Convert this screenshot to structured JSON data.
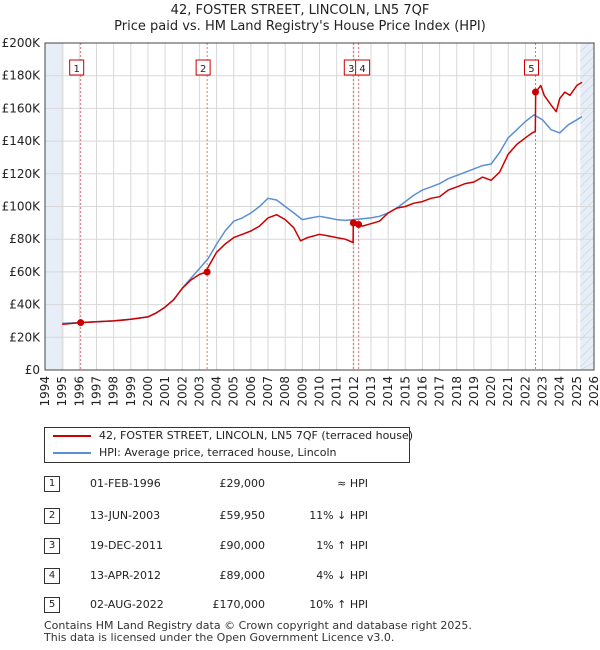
{
  "header": {
    "title": "42, FOSTER STREET, LINCOLN, LN5 7QF",
    "subtitle": "Price paid vs. HM Land Registry's House Price Index (HPI)"
  },
  "colors": {
    "property": "#cc0000",
    "hpi": "#5b8fd4",
    "shade": "#e8eef8",
    "grid": "#d8d8d8"
  },
  "chart_data": {
    "type": "line",
    "xlim": [
      1994,
      2026
    ],
    "ylim": [
      0,
      200000
    ],
    "x_ticks": [
      1994,
      1995,
      1996,
      1997,
      1998,
      1999,
      2000,
      2001,
      2002,
      2003,
      2004,
      2005,
      2006,
      2007,
      2008,
      2009,
      2010,
      2011,
      2012,
      2013,
      2014,
      2015,
      2016,
      2017,
      2018,
      2019,
      2020,
      2021,
      2022,
      2023,
      2024,
      2025,
      2026
    ],
    "y_ticks": [
      {
        "value": 0,
        "label": "£0"
      },
      {
        "value": 20000,
        "label": "£20K"
      },
      {
        "value": 40000,
        "label": "£40K"
      },
      {
        "value": 60000,
        "label": "£60K"
      },
      {
        "value": 80000,
        "label": "£80K"
      },
      {
        "value": 100000,
        "label": "£100K"
      },
      {
        "value": 120000,
        "label": "£120K"
      },
      {
        "value": 140000,
        "label": "£140K"
      },
      {
        "value": 160000,
        "label": "£160K"
      },
      {
        "value": 180000,
        "label": "£180K"
      },
      {
        "value": 200000,
        "label": "£200K"
      }
    ],
    "shaded_ranges": [
      [
        1994,
        1995.1
      ],
      [
        2025.2,
        2026
      ]
    ],
    "series": [
      {
        "name": "42, FOSTER STREET, LINCOLN, LN5 7QF (terraced house)",
        "color": "#cc0000",
        "x": [
          1995.0,
          1996.08,
          1997.0,
          1998.0,
          1999.0,
          2000.0,
          2000.5,
          2001.0,
          2001.5,
          2002.0,
          2002.5,
          2003.0,
          2003.44,
          2003.46,
          2004.0,
          2004.5,
          2005.0,
          2005.5,
          2006.0,
          2006.5,
          2007.0,
          2007.5,
          2008.0,
          2008.5,
          2008.9,
          2009.3,
          2010.0,
          2010.5,
          2011.0,
          2011.5,
          2011.96,
          2011.97,
          2012.1,
          2012.28,
          2012.5,
          2013.0,
          2013.5,
          2014.0,
          2014.5,
          2015.0,
          2015.5,
          2016.0,
          2016.5,
          2017.0,
          2017.5,
          2018.0,
          2018.5,
          2019.0,
          2019.5,
          2020.0,
          2020.5,
          2021.0,
          2021.5,
          2022.0,
          2022.4,
          2022.58,
          2022.6,
          2022.9,
          2023.1,
          2023.5,
          2023.8,
          2024.0,
          2024.3,
          2024.6,
          2025.0,
          2025.3
        ],
        "values": [
          28000,
          29000,
          29500,
          30000,
          31000,
          32500,
          35000,
          38500,
          43000,
          50000,
          55000,
          58500,
          59950,
          62000,
          72000,
          77000,
          81000,
          83000,
          85000,
          88000,
          93000,
          95000,
          92000,
          87000,
          79000,
          81000,
          83000,
          82000,
          81000,
          80000,
          78000,
          90000,
          91000,
          89000,
          88000,
          89500,
          91000,
          96000,
          99000,
          100000,
          102000,
          103000,
          105000,
          106000,
          110000,
          112000,
          114000,
          115000,
          118000,
          116000,
          121000,
          132000,
          138000,
          142000,
          145000,
          146000,
          170000,
          174000,
          168000,
          162000,
          158000,
          166000,
          170000,
          168000,
          174000,
          176000
        ]
      },
      {
        "name": "HPI: Average price, terraced house, Lincoln",
        "color": "#5b8fd4",
        "x": [
          1995.0,
          1996.0,
          1997.0,
          1998.0,
          1999.0,
          2000.0,
          2000.5,
          2001.0,
          2001.5,
          2002.0,
          2002.5,
          2003.0,
          2003.5,
          2004.0,
          2004.5,
          2005.0,
          2005.5,
          2006.0,
          2006.5,
          2007.0,
          2007.5,
          2008.0,
          2008.5,
          2009.0,
          2009.5,
          2010.0,
          2010.5,
          2011.0,
          2011.5,
          2012.0,
          2012.5,
          2013.0,
          2013.5,
          2014.0,
          2014.5,
          2015.0,
          2015.5,
          2016.0,
          2016.5,
          2017.0,
          2017.5,
          2018.0,
          2018.5,
          2019.0,
          2019.5,
          2020.0,
          2020.5,
          2021.0,
          2021.5,
          2022.0,
          2022.5,
          2023.0,
          2023.5,
          2024.0,
          2024.5,
          2025.0,
          2025.3
        ],
        "values": [
          28500,
          29000,
          29500,
          30000,
          31000,
          32500,
          35000,
          38500,
          43000,
          50000,
          56000,
          62000,
          68000,
          77000,
          85000,
          91000,
          93000,
          96000,
          100000,
          105000,
          104000,
          100000,
          96000,
          92000,
          93000,
          94000,
          93000,
          92000,
          91500,
          92000,
          92500,
          93000,
          94000,
          96000,
          99000,
          103000,
          107000,
          110000,
          112000,
          114000,
          117000,
          119000,
          121000,
          123000,
          125000,
          126000,
          133000,
          142000,
          147000,
          152000,
          156000,
          153000,
          147000,
          145000,
          150000,
          153000,
          155000
        ]
      }
    ],
    "sales": [
      {
        "id": "1",
        "x": 1996.08,
        "value": 29000,
        "date": "01-FEB-1996",
        "price": "£29,000",
        "hpi": "≈ HPI"
      },
      {
        "id": "2",
        "x": 2003.45,
        "value": 59950,
        "date": "13-JUN-2003",
        "price": "£59,950",
        "hpi": "11% ↓ HPI"
      },
      {
        "id": "3",
        "x": 2011.97,
        "value": 90000,
        "date": "19-DEC-2011",
        "price": "£90,000",
        "hpi": "1% ↑ HPI"
      },
      {
        "id": "4",
        "x": 2012.28,
        "value": 89000,
        "date": "13-APR-2012",
        "price": "£89,000",
        "hpi": "4% ↓ HPI"
      },
      {
        "id": "5",
        "x": 2022.59,
        "value": 170000,
        "date": "02-AUG-2022",
        "price": "£170,000",
        "hpi": "10% ↑ HPI"
      }
    ]
  },
  "legend": {
    "property_label": "42, FOSTER STREET, LINCOLN, LN5 7QF (terraced house)",
    "hpi_label": "HPI: Average price, terraced house, Lincoln"
  },
  "footer": {
    "line1": "Contains HM Land Registry data © Crown copyright and database right 2025.",
    "line2": "This data is licensed under the Open Government Licence v3.0."
  }
}
